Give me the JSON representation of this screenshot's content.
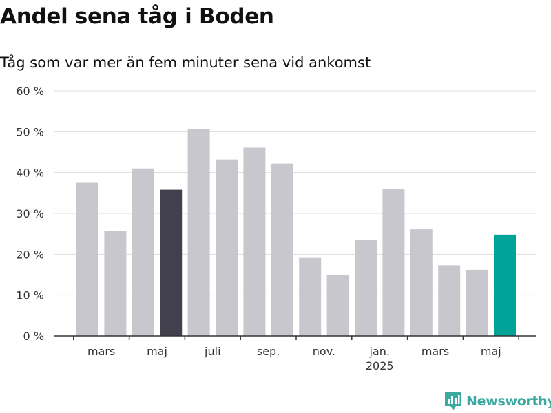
{
  "header": {
    "title": "Andel sena tåg i Boden",
    "subtitle": "Tåg som var mer än fem minuter sena vid ankomst"
  },
  "branding": {
    "name": "Newsworthy",
    "icon": "newsworthy-logo-icon",
    "color": "#3aa9a0"
  },
  "colors": {
    "default_bar": "#c8c7ce",
    "highlight_bar": "#41404c",
    "latest_bar": "#00a398",
    "grid": "#dddddd",
    "axis": "#333333"
  },
  "chart_data": {
    "type": "bar",
    "title": "Andel sena tåg i Boden",
    "subtitle": "Tåg som var mer än fem minuter sena vid ankomst",
    "xlabel": "",
    "ylabel": "",
    "ylim": [
      0,
      60
    ],
    "y_ticks": [
      {
        "value": 0,
        "label": "0 %"
      },
      {
        "value": 10,
        "label": "10 %"
      },
      {
        "value": 20,
        "label": "20 %"
      },
      {
        "value": 30,
        "label": "30 %"
      },
      {
        "value": 40,
        "label": "40 %"
      },
      {
        "value": 50,
        "label": "50 %"
      },
      {
        "value": 60,
        "label": "60 %"
      }
    ],
    "x_tick_labels": [
      {
        "index": 1,
        "label": "mars"
      },
      {
        "index": 3,
        "label": "maj"
      },
      {
        "index": 5,
        "label": "juli"
      },
      {
        "index": 7,
        "label": "sep."
      },
      {
        "index": 9,
        "label": "nov."
      },
      {
        "index": 11,
        "label": "jan.",
        "sublabel": "2025"
      },
      {
        "index": 13,
        "label": "mars"
      },
      {
        "index": 15,
        "label": "maj"
      }
    ],
    "values": [
      37.5,
      25.7,
      41.0,
      35.8,
      50.6,
      43.2,
      46.1,
      42.2,
      19.1,
      15.0,
      23.5,
      36.0,
      26.1,
      17.3,
      16.2,
      24.8
    ],
    "highlight": [
      {
        "index": 3,
        "color": "#41404c"
      },
      {
        "index": 15,
        "color": "#00a398"
      }
    ],
    "grid": true
  }
}
